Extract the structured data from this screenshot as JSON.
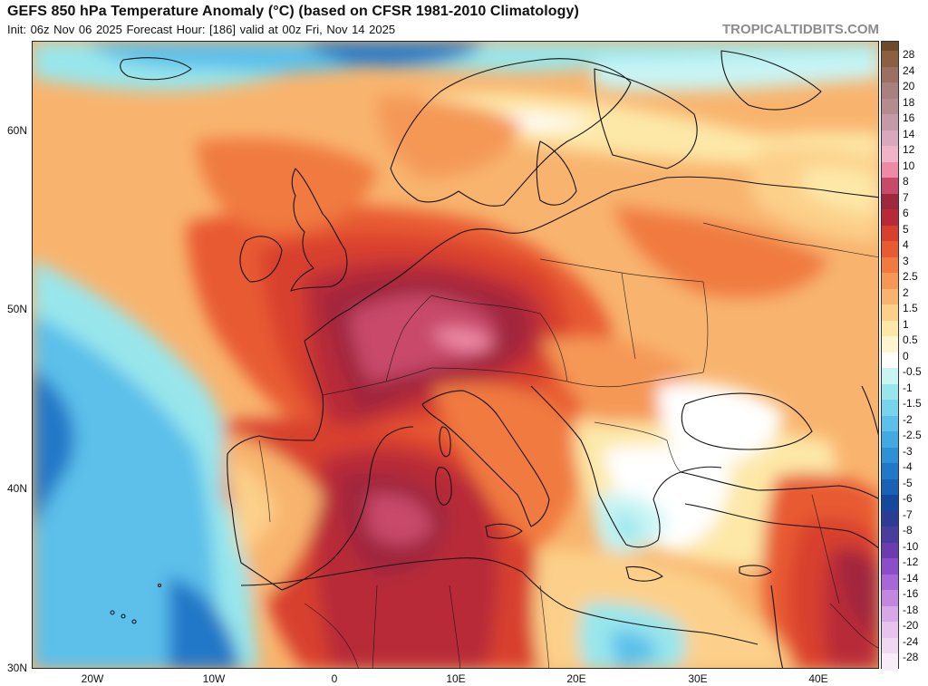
{
  "header": {
    "title": "GEFS 850 hPa Temperature Anomaly (°C) (based on CFSR 1981-2010 Climatology)",
    "subtitle": "Init: 06z Nov 06 2025   Forecast Hour: [186]   valid at 00z Fri, Nov 14 2025",
    "brand": "TROPICALTIDBITS.COM"
  },
  "map": {
    "lat_labels": [
      "60N",
      "50N",
      "40N",
      "30N"
    ],
    "lon_labels": [
      "20W",
      "10W",
      "0",
      "10E",
      "20E",
      "30E",
      "40E"
    ]
  },
  "colorbar": {
    "labels": [
      "28",
      "24",
      "20",
      "18",
      "16",
      "14",
      "12",
      "10",
      "8",
      "7",
      "6",
      "5",
      "4",
      "3",
      "2.5",
      "2",
      "1.5",
      "1",
      "0.5",
      "0",
      "-0.5",
      "-1",
      "-1.5",
      "-2",
      "-2.5",
      "-3",
      "-4",
      "-5",
      "-6",
      "-7",
      "-8",
      "-10",
      "-12",
      "-14",
      "-16",
      "-18",
      "-20",
      "-24",
      "-28"
    ],
    "colors": [
      "#8a6040",
      "#9c7060",
      "#a88080",
      "#b48c90",
      "#c49aa8",
      "#d8a8bc",
      "#f0b4c8",
      "#ee8aa6",
      "#c84a6a",
      "#a0283e",
      "#b82a38",
      "#d8402e",
      "#e85a32",
      "#f07a40",
      "#f59856",
      "#f8b46e",
      "#fcd08a",
      "#fde8a8",
      "#fff6d0",
      "#ffffff",
      "#c8f4f4",
      "#98e6ec",
      "#78d4ec",
      "#5cc0ea",
      "#44a8e2",
      "#3090d6",
      "#2278c8",
      "#1a60b4",
      "#14489c",
      "#2c3c94",
      "#483c9c",
      "#6a3cb0",
      "#8a4ec8",
      "#a668d6",
      "#c288e0",
      "#d8a8e6",
      "#e6c4ec",
      "#f0d8f0",
      "#f8ecf8"
    ]
  }
}
